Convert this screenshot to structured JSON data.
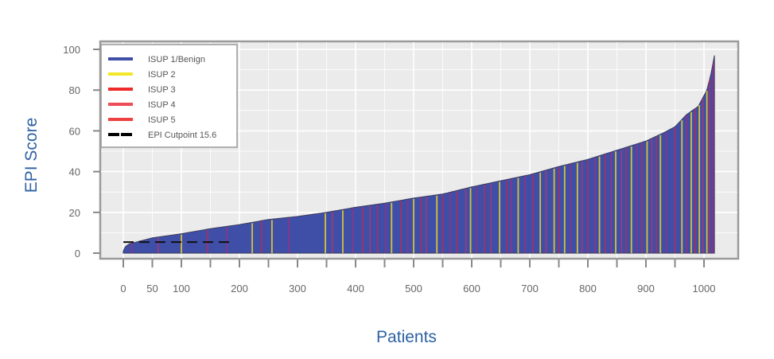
{
  "chart_data": {
    "type": "bar",
    "title": "",
    "xlabel": "Patients",
    "ylabel": "EPI Score",
    "xlim": [
      0,
      1025
    ],
    "ylim": [
      0,
      100
    ],
    "x_ticks": [
      0,
      50,
      100,
      150,
      200,
      250,
      300,
      350,
      400,
      450,
      500,
      550,
      600,
      650,
      700,
      750,
      800,
      850,
      900,
      950,
      1000
    ],
    "x_tick_labels": [
      "0",
      "50",
      "100",
      "",
      "200",
      "",
      "300",
      "",
      "400",
      "",
      "500",
      "",
      "600",
      "",
      "700",
      "",
      "800",
      "",
      "900",
      "",
      "1000"
    ],
    "y_ticks": [
      0,
      20,
      40,
      60,
      80,
      100
    ],
    "y_tick_labels": [
      "0",
      "20",
      "40",
      "60",
      "80",
      "100"
    ],
    "grid": true,
    "background": "#ebebeb",
    "legend_position": "top-left",
    "legend": [
      {
        "label": "ISUP 1/Benign",
        "color": "#3f4fa8",
        "style": "solid"
      },
      {
        "label": "ISUP 2",
        "color": "#f2e829",
        "style": "solid"
      },
      {
        "label": "ISUP 3",
        "color": "#ee2a2a",
        "style": "solid"
      },
      {
        "label": "ISUP 4",
        "color": "#ef4d55",
        "style": "solid"
      },
      {
        "label": "ISUP 5",
        "color": "#ee4040",
        "style": "solid"
      },
      {
        "label": "EPI Cutpoint 15.6",
        "color": "#000000",
        "style": "dashed"
      }
    ],
    "sorted_scores_curve": {
      "patients": [
        0,
        3,
        10,
        30,
        50,
        100,
        150,
        200,
        250,
        300,
        350,
        400,
        450,
        500,
        550,
        600,
        650,
        700,
        750,
        800,
        850,
        900,
        930,
        950,
        970,
        990,
        1005,
        1012,
        1018
      ],
      "epi_score": [
        1,
        3,
        4.5,
        6,
        7.5,
        9.5,
        12,
        14,
        16.5,
        18,
        20,
        22.5,
        24.5,
        27,
        29,
        32.5,
        35.5,
        38.5,
        42.5,
        46,
        50.5,
        55,
        59,
        62,
        68,
        72,
        80,
        88,
        97
      ]
    },
    "cutpoint": {
      "label": "EPI Cutpoint 15.6",
      "value": 15.6,
      "x_range": [
        0,
        190
      ]
    },
    "highlighted_patients": [
      {
        "x": 15,
        "isup": 4
      },
      {
        "x": 60,
        "isup": 5
      },
      {
        "x": 100,
        "isup": 2
      },
      {
        "x": 145,
        "isup": 3
      },
      {
        "x": 178,
        "isup": 4
      },
      {
        "x": 222,
        "isup": 2
      },
      {
        "x": 238,
        "isup": 3
      },
      {
        "x": 256,
        "isup": 2
      },
      {
        "x": 285,
        "isup": 4
      },
      {
        "x": 348,
        "isup": 2
      },
      {
        "x": 360,
        "isup": 5
      },
      {
        "x": 378,
        "isup": 2
      },
      {
        "x": 395,
        "isup": 4
      },
      {
        "x": 412,
        "isup": 3
      },
      {
        "x": 425,
        "isup": 5
      },
      {
        "x": 438,
        "isup": 3
      },
      {
        "x": 452,
        "isup": 4
      },
      {
        "x": 462,
        "isup": 2
      },
      {
        "x": 478,
        "isup": 3
      },
      {
        "x": 490,
        "isup": 4
      },
      {
        "x": 500,
        "isup": 2
      },
      {
        "x": 513,
        "isup": 3
      },
      {
        "x": 522,
        "isup": 5
      },
      {
        "x": 540,
        "isup": 2
      },
      {
        "x": 550,
        "isup": 3
      },
      {
        "x": 563,
        "isup": 4
      },
      {
        "x": 575,
        "isup": 3
      },
      {
        "x": 590,
        "isup": 5
      },
      {
        "x": 598,
        "isup": 2
      },
      {
        "x": 608,
        "isup": 4
      },
      {
        "x": 622,
        "isup": 3
      },
      {
        "x": 633,
        "isup": 5
      },
      {
        "x": 648,
        "isup": 2
      },
      {
        "x": 660,
        "isup": 3
      },
      {
        "x": 668,
        "isup": 4
      },
      {
        "x": 680,
        "isup": 2
      },
      {
        "x": 692,
        "isup": 4
      },
      {
        "x": 705,
        "isup": 3
      },
      {
        "x": 718,
        "isup": 2
      },
      {
        "x": 728,
        "isup": 5
      },
      {
        "x": 742,
        "isup": 2
      },
      {
        "x": 750,
        "isup": 3
      },
      {
        "x": 760,
        "isup": 2
      },
      {
        "x": 770,
        "isup": 4
      },
      {
        "x": 782,
        "isup": 2
      },
      {
        "x": 790,
        "isup": 5
      },
      {
        "x": 800,
        "isup": 3
      },
      {
        "x": 812,
        "isup": 4
      },
      {
        "x": 820,
        "isup": 2
      },
      {
        "x": 830,
        "isup": 3
      },
      {
        "x": 840,
        "isup": 4
      },
      {
        "x": 848,
        "isup": 2
      },
      {
        "x": 858,
        "isup": 5
      },
      {
        "x": 866,
        "isup": 3
      },
      {
        "x": 875,
        "isup": 2
      },
      {
        "x": 884,
        "isup": 4
      },
      {
        "x": 893,
        "isup": 3
      },
      {
        "x": 902,
        "isup": 2
      },
      {
        "x": 910,
        "isup": 5
      },
      {
        "x": 918,
        "isup": 3
      },
      {
        "x": 925,
        "isup": 2
      },
      {
        "x": 935,
        "isup": 4
      },
      {
        "x": 950,
        "isup": 3
      },
      {
        "x": 962,
        "isup": 2
      },
      {
        "x": 970,
        "isup": 4
      },
      {
        "x": 978,
        "isup": 2
      },
      {
        "x": 985,
        "isup": 3
      },
      {
        "x": 992,
        "isup": 2
      },
      {
        "x": 998,
        "isup": 5
      },
      {
        "x": 1005,
        "isup": 2
      },
      {
        "x": 1010,
        "isup": 3
      },
      {
        "x": 1016,
        "isup": 4
      }
    ]
  }
}
